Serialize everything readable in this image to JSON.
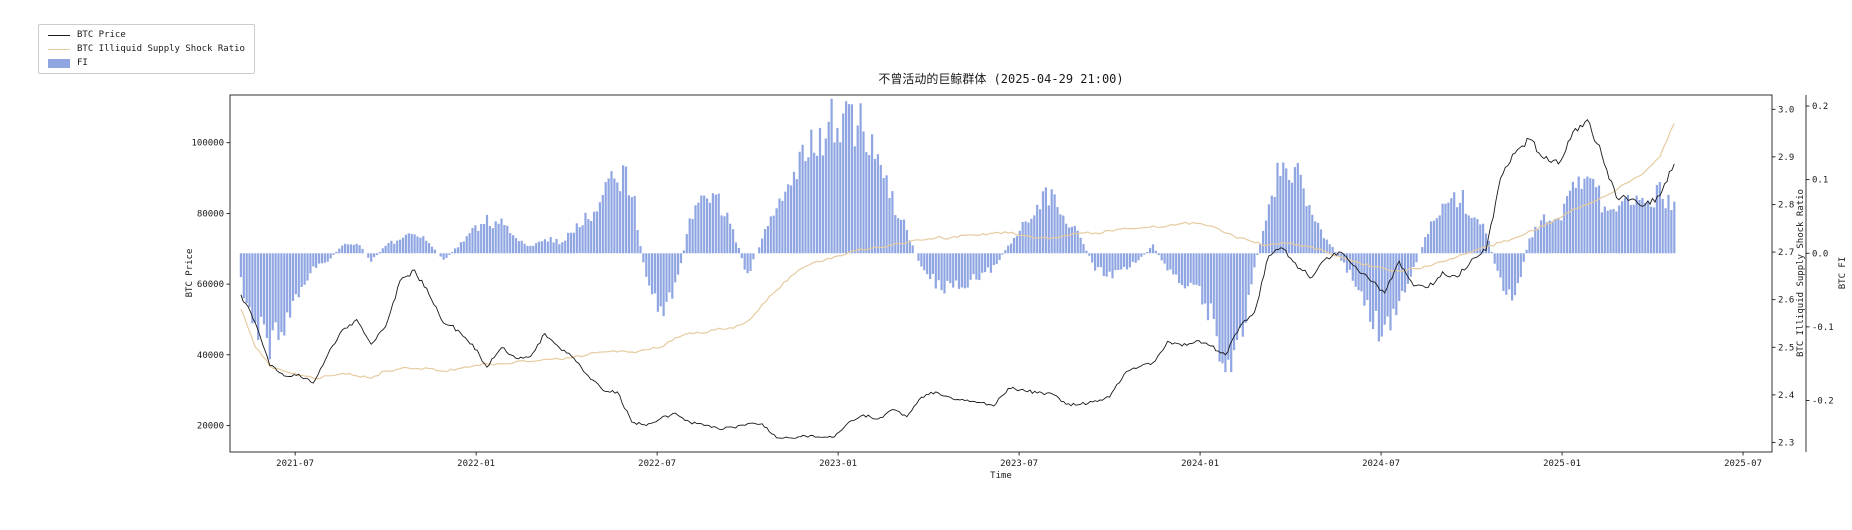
{
  "chart_data": {
    "type": "line+bar",
    "title": "不曾活动的巨鲸群体 (2025-04-29 21:00)",
    "xlabel": "Time",
    "grid": false,
    "legend_position": "figure-top-left",
    "xlim": [
      2021.32,
      2025.58
    ],
    "xticks": [
      {
        "t": 2021.5,
        "label": "2021-07"
      },
      {
        "t": 2022.0,
        "label": "2022-01"
      },
      {
        "t": 2022.5,
        "label": "2022-07"
      },
      {
        "t": 2023.0,
        "label": "2023-01"
      },
      {
        "t": 2023.5,
        "label": "2023-07"
      },
      {
        "t": 2024.0,
        "label": "2024-01"
      },
      {
        "t": 2024.5,
        "label": "2024-07"
      },
      {
        "t": 2025.0,
        "label": "2025-01"
      },
      {
        "t": 2025.5,
        "label": "2025-07"
      }
    ],
    "x": [
      2021.35,
      2021.39,
      2021.43,
      2021.47,
      2021.51,
      2021.55,
      2021.59,
      2021.63,
      2021.67,
      2021.71,
      2021.75,
      2021.79,
      2021.83,
      2021.87,
      2021.91,
      2021.95,
      2021.99,
      2022.03,
      2022.07,
      2022.11,
      2022.15,
      2022.19,
      2022.23,
      2022.27,
      2022.31,
      2022.35,
      2022.39,
      2022.43,
      2022.47,
      2022.51,
      2022.55,
      2022.59,
      2022.63,
      2022.67,
      2022.71,
      2022.75,
      2022.79,
      2022.83,
      2022.87,
      2022.91,
      2022.95,
      2022.99,
      2023.03,
      2023.07,
      2023.11,
      2023.15,
      2023.19,
      2023.23,
      2023.27,
      2023.31,
      2023.35,
      2023.39,
      2023.43,
      2023.47,
      2023.51,
      2023.55,
      2023.59,
      2023.63,
      2023.67,
      2023.71,
      2023.75,
      2023.79,
      2023.83,
      2023.87,
      2023.91,
      2023.95,
      2023.99,
      2024.03,
      2024.07,
      2024.11,
      2024.15,
      2024.19,
      2024.23,
      2024.27,
      2024.31,
      2024.35,
      2024.39,
      2024.43,
      2024.47,
      2024.51,
      2024.55,
      2024.59,
      2024.63,
      2024.67,
      2024.71,
      2024.75,
      2024.79,
      2024.83,
      2024.87,
      2024.91,
      2024.95,
      2024.99,
      2025.03,
      2025.07,
      2025.11,
      2025.15,
      2025.19,
      2025.23,
      2025.27,
      2025.31
    ],
    "series": [
      {
        "id": "price",
        "name": "BTC Price",
        "render": "line",
        "axis": "left",
        "color": "#1a1a1a",
        "ylabel": "BTC Price",
        "ylim": [
          12500,
          113500
        ],
        "yticks": [
          20000,
          40000,
          60000,
          80000,
          100000
        ],
        "values": [
          57000,
          49000,
          37000,
          34000,
          34500,
          32000,
          40000,
          47000,
          50000,
          43000,
          48000,
          61000,
          64000,
          57000,
          49000,
          47000,
          43000,
          36500,
          42000,
          39000,
          39500,
          46000,
          42000,
          39000,
          34000,
          30000,
          29500,
          21000,
          20000,
          22000,
          23500,
          21000,
          20000,
          19000,
          19500,
          20500,
          20500,
          16500,
          16500,
          17000,
          16700,
          16800,
          21000,
          23000,
          21800,
          24500,
          22500,
          28000,
          29500,
          28000,
          27000,
          26500,
          25500,
          30500,
          30200,
          29200,
          29000,
          26000,
          26000,
          27000,
          28000,
          34500,
          36500,
          37800,
          43800,
          42500,
          44000,
          42500,
          40000,
          48000,
          52000,
          68000,
          70000,
          64500,
          62000,
          67500,
          69000,
          65000,
          61000,
          57500,
          66500,
          59500,
          59000,
          63500,
          62000,
          67000,
          69500,
          90000,
          97000,
          101000,
          95500,
          94000,
          103000,
          106500,
          96500,
          84500,
          84000,
          82500,
          85000,
          94000
        ]
      },
      {
        "id": "ratio",
        "name": "BTC Illiquid Supply Shock Ratio",
        "render": "line",
        "axis": "right",
        "color": "#e6cba0",
        "ylabel": "BTC Illiquid Supply Shock Ratio",
        "ylim": [
          2.28,
          3.03
        ],
        "yticks": [
          2.3,
          2.4,
          2.5,
          2.6,
          2.7,
          2.8,
          2.9,
          3.0
        ],
        "tick_decimals": 1,
        "values": [
          2.58,
          2.5,
          2.46,
          2.45,
          2.44,
          2.435,
          2.44,
          2.445,
          2.44,
          2.435,
          2.45,
          2.455,
          2.455,
          2.455,
          2.45,
          2.455,
          2.46,
          2.465,
          2.465,
          2.47,
          2.47,
          2.475,
          2.475,
          2.48,
          2.485,
          2.49,
          2.49,
          2.49,
          2.495,
          2.5,
          2.52,
          2.53,
          2.53,
          2.54,
          2.54,
          2.555,
          2.59,
          2.62,
          2.65,
          2.67,
          2.68,
          2.69,
          2.7,
          2.705,
          2.71,
          2.715,
          2.72,
          2.725,
          2.73,
          2.73,
          2.735,
          2.735,
          2.74,
          2.74,
          2.735,
          2.73,
          2.73,
          2.735,
          2.74,
          2.74,
          2.745,
          2.75,
          2.75,
          2.755,
          2.755,
          2.76,
          2.76,
          2.755,
          2.74,
          2.73,
          2.72,
          2.715,
          2.72,
          2.715,
          2.71,
          2.7,
          2.69,
          2.68,
          2.67,
          2.665,
          2.66,
          2.665,
          2.67,
          2.68,
          2.69,
          2.7,
          2.71,
          2.72,
          2.73,
          2.745,
          2.755,
          2.77,
          2.79,
          2.8,
          2.815,
          2.83,
          2.85,
          2.87,
          2.9,
          2.97
        ]
      },
      {
        "id": "fi",
        "name": "FI",
        "render": "bar",
        "axis": "right2",
        "color": "#8fa6e3",
        "ylabel": "BTC FI",
        "ylim": [
          -0.27,
          0.215
        ],
        "yticks": [
          -0.2,
          -0.1,
          0.0,
          0.1,
          0.2
        ],
        "tick_decimals": 1,
        "values": [
          -0.04,
          -0.1,
          -0.12,
          -0.1,
          -0.05,
          -0.02,
          -0.01,
          0.01,
          0.015,
          -0.01,
          0.01,
          0.02,
          0.025,
          0.015,
          -0.01,
          0.01,
          0.03,
          0.045,
          0.04,
          0.02,
          0.01,
          0.02,
          0.015,
          0.03,
          0.05,
          0.08,
          0.11,
          0.09,
          -0.04,
          -0.08,
          -0.05,
          0.04,
          0.09,
          0.07,
          0.03,
          -0.03,
          0.02,
          0.06,
          0.1,
          0.13,
          0.16,
          0.18,
          0.19,
          0.16,
          0.12,
          0.07,
          0.03,
          -0.02,
          -0.04,
          -0.05,
          -0.04,
          -0.03,
          -0.02,
          0.01,
          0.04,
          0.07,
          0.08,
          0.05,
          0.02,
          -0.02,
          -0.03,
          -0.02,
          -0.01,
          0.01,
          -0.02,
          -0.04,
          -0.05,
          -0.08,
          -0.16,
          -0.12,
          -0.02,
          0.07,
          0.12,
          0.1,
          0.05,
          0.02,
          -0.01,
          -0.04,
          -0.08,
          -0.11,
          -0.06,
          -0.02,
          0.03,
          0.06,
          0.08,
          0.06,
          0.03,
          -0.04,
          -0.06,
          0.02,
          0.05,
          0.04,
          0.08,
          0.1,
          0.07,
          0.05,
          0.07,
          0.06,
          0.08,
          0.07
        ]
      }
    ]
  }
}
